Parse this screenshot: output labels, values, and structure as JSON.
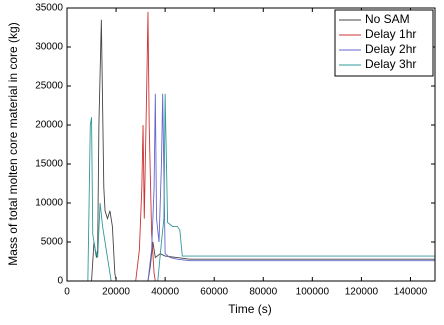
{
  "chart_data": {
    "type": "line",
    "x_label": "Time (s)",
    "y_label": "Mass of total molten core material in core (kg)",
    "xlim": [
      0,
      150000
    ],
    "ylim": [
      0,
      35000
    ],
    "xticks": [
      0,
      20000,
      40000,
      60000,
      80000,
      100000,
      120000,
      140000
    ],
    "yticks": [
      0,
      5000,
      10000,
      15000,
      20000,
      25000,
      30000,
      35000
    ],
    "grid": false,
    "legend": "upper right",
    "series": [
      {
        "name": "No SAM",
        "color": "#444444",
        "x": [
          0,
          10000,
          11000,
          12000,
          12500,
          13000,
          14000,
          15000,
          15500,
          16500,
          17500,
          18500,
          19500,
          20000,
          33000,
          34000,
          35000,
          36000,
          38000,
          40000,
          45000,
          50000,
          150000
        ],
        "values": [
          0,
          0,
          5000,
          3000,
          4000,
          20000,
          33500,
          12000,
          9000,
          8000,
          9000,
          7000,
          1000,
          0,
          0,
          2000,
          5000,
          3000,
          3500,
          3200,
          3000,
          2800,
          2800
        ]
      },
      {
        "name": "Delay 1hr",
        "color": "#cc3333",
        "x": [
          0,
          28000,
          29500,
          30500,
          31000,
          31500,
          32500,
          33000,
          33500,
          34500,
          35500,
          36000,
          150000
        ],
        "values": [
          0,
          0,
          4000,
          12000,
          20000,
          8000,
          25000,
          34500,
          20000,
          6000,
          1000,
          0,
          0
        ]
      },
      {
        "name": "Delay 2hr",
        "color": "#6666cc",
        "x": [
          0,
          33000,
          34500,
          35500,
          36000,
          36500,
          37500,
          38500,
          39000,
          40000,
          42000,
          45000,
          50000,
          150000
        ],
        "values": [
          0,
          0,
          4000,
          12000,
          24000,
          8000,
          5000,
          15000,
          24000,
          3500,
          3000,
          2800,
          2600,
          2600
        ]
      },
      {
        "name": "Delay 3hr",
        "color": "#339999",
        "x": [
          0,
          8500,
          9500,
          10000,
          10500,
          11500,
          12500,
          13500,
          14500,
          15000,
          16000,
          17000,
          18000,
          37000,
          38500,
          39500,
          40000,
          41000,
          43000,
          45000,
          46000,
          47000,
          150000
        ],
        "values": [
          0,
          0,
          20000,
          21000,
          6000,
          4000,
          3000,
          10000,
          7000,
          6000,
          4000,
          2000,
          0,
          0,
          5000,
          8000,
          24000,
          7500,
          7000,
          7000,
          6500,
          3200,
          3200
        ]
      }
    ]
  }
}
